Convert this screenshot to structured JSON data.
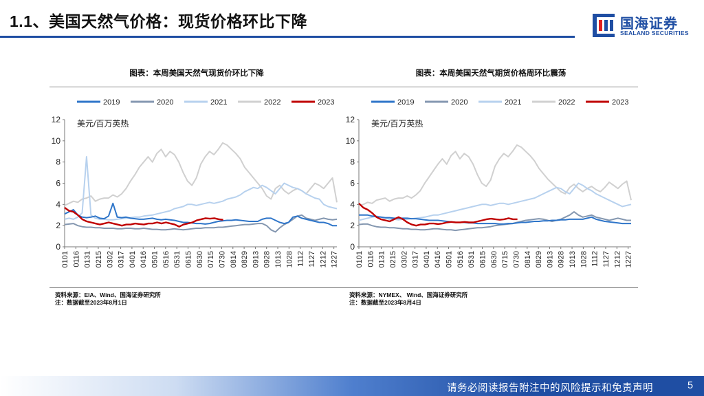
{
  "page": {
    "title": "1.1、美国天然气价格：现货价格环比下降",
    "logo_cn": "国海证券",
    "logo_en": "SEALAND SECURITIES",
    "footer_text": "请务必阅读报告附注中的风险提示和免责声明",
    "page_number": "5"
  },
  "colors": {
    "brand": "#1f4ea3",
    "2019": "#2e75c9",
    "2020": "#8497b0",
    "2021": "#b7d1ee",
    "2022": "#d0d0d0",
    "2023": "#c00000"
  },
  "left_panel": {
    "title": "图表：本周美国天然气现货价环比下降",
    "source_line1": "资料来源：EIA、Wind、国海证券研究所",
    "source_line2": "注：数据截至2023年8月1日"
  },
  "right_panel": {
    "title": "图表：本周美国天然气期货价格周环比震荡",
    "source_line1": "资料来源：NYMEX、 Wind、国海证券研究所",
    "source_line2": "注：数据截至2023年8月4日"
  },
  "chart_data": [
    {
      "type": "line",
      "title": "本周美国天然气现货价环比下降",
      "unit_label": "美元/百万英热",
      "ylim": [
        0,
        12
      ],
      "yticks": [
        0,
        2,
        4,
        6,
        8,
        10,
        12
      ],
      "x_tick_labels": [
        "0101",
        "0116",
        "0131",
        "0215",
        "0302",
        "0317",
        "0401",
        "0416",
        "0501",
        "0516",
        "0531",
        "0615",
        "0630",
        "0715",
        "0730",
        "0814",
        "0829",
        "0913",
        "0928",
        "1013",
        "1028",
        "1112",
        "1127",
        "1212",
        "1227"
      ],
      "legend": [
        "2019",
        "2020",
        "2021",
        "2022",
        "2023"
      ],
      "series": [
        {
          "name": "2019",
          "values": [
            3.1,
            3.3,
            3.5,
            3.0,
            2.8,
            2.75,
            2.8,
            2.9,
            2.7,
            2.65,
            2.9,
            4.1,
            2.8,
            2.75,
            2.8,
            2.7,
            2.65,
            2.6,
            2.6,
            2.65,
            2.7,
            2.6,
            2.55,
            2.6,
            2.55,
            2.5,
            2.4,
            2.3,
            2.3,
            2.25,
            2.2,
            2.2,
            2.15,
            2.2,
            2.3,
            2.4,
            2.45,
            2.5,
            2.5,
            2.55,
            2.5,
            2.45,
            2.4,
            2.4,
            2.4,
            2.6,
            2.7,
            2.7,
            2.5,
            2.3,
            2.2,
            2.3,
            2.8,
            2.9,
            2.7,
            2.6,
            2.5,
            2.4,
            2.3,
            2.3,
            2.2,
            2.0,
            2.0
          ]
        },
        {
          "name": "2020",
          "values": [
            2.1,
            2.15,
            2.2,
            2.0,
            1.9,
            1.85,
            1.85,
            1.8,
            1.8,
            1.75,
            1.75,
            1.75,
            1.7,
            1.7,
            1.75,
            1.75,
            1.7,
            1.7,
            1.75,
            1.7,
            1.65,
            1.65,
            1.6,
            1.6,
            1.65,
            1.7,
            1.65,
            1.6,
            1.65,
            1.7,
            1.75,
            1.75,
            1.8,
            1.8,
            1.8,
            1.85,
            1.85,
            1.9,
            1.95,
            2.0,
            2.05,
            2.1,
            2.1,
            2.15,
            2.2,
            2.2,
            2.0,
            1.6,
            1.4,
            1.8,
            2.1,
            2.3,
            2.6,
            2.9,
            3.0,
            2.7,
            2.6,
            2.5,
            2.6,
            2.7,
            2.6,
            2.55,
            2.6
          ]
        },
        {
          "name": "2021",
          "values": [
            2.6,
            2.7,
            2.6,
            2.8,
            3.2,
            8.5,
            3.0,
            2.7,
            2.6,
            2.6,
            2.55,
            2.55,
            2.6,
            2.65,
            2.7,
            2.75,
            2.8,
            2.8,
            2.9,
            2.95,
            3.0,
            3.1,
            3.2,
            3.3,
            3.4,
            3.6,
            3.7,
            3.8,
            4.0,
            4.0,
            3.9,
            4.0,
            4.1,
            4.2,
            4.1,
            4.2,
            4.3,
            4.5,
            4.6,
            4.7,
            4.9,
            5.2,
            5.4,
            5.6,
            5.5,
            5.8,
            5.6,
            5.3,
            5.0,
            5.5,
            6.0,
            5.8,
            5.6,
            5.5,
            5.3,
            5.0,
            4.8,
            4.6,
            4.5,
            4.0,
            3.8,
            3.7,
            3.6
          ]
        },
        {
          "name": "2022",
          "values": [
            3.9,
            4.1,
            4.3,
            4.2,
            4.5,
            4.6,
            4.8,
            4.3,
            4.5,
            4.6,
            4.6,
            4.9,
            4.7,
            5.0,
            5.5,
            6.2,
            6.8,
            7.5,
            8.0,
            8.5,
            8.0,
            8.8,
            9.2,
            8.5,
            9.0,
            8.7,
            8.0,
            7.0,
            6.2,
            5.8,
            6.5,
            7.8,
            8.5,
            9.0,
            8.7,
            9.2,
            9.8,
            9.6,
            9.2,
            8.8,
            8.3,
            7.5,
            7.0,
            6.5,
            6.0,
            5.5,
            4.8,
            4.5,
            5.5,
            5.8,
            5.3,
            5.0,
            5.3,
            5.5,
            5.3,
            5.0,
            5.5,
            6.0,
            5.8,
            5.5,
            6.0,
            6.5,
            4.2
          ]
        },
        {
          "name": "2023",
          "values": [
            3.7,
            3.4,
            3.3,
            3.0,
            2.6,
            2.4,
            2.3,
            2.2,
            2.1,
            2.2,
            2.3,
            2.2,
            2.1,
            2.0,
            2.1,
            2.1,
            2.2,
            2.15,
            2.1,
            2.2,
            2.2,
            2.3,
            2.2,
            2.3,
            2.2,
            2.1,
            1.9,
            2.1,
            2.2,
            2.3,
            2.5,
            2.6,
            2.7,
            2.65,
            2.7,
            2.6,
            2.55
          ]
        }
      ]
    },
    {
      "type": "line",
      "title": "本周美国天然气期货价格周环比震荡",
      "unit_label": "美元/百万英热",
      "ylim": [
        0,
        12
      ],
      "yticks": [
        0,
        2,
        4,
        6,
        8,
        10,
        12
      ],
      "x_tick_labels": [
        "0101",
        "0116",
        "0131",
        "0215",
        "0302",
        "0317",
        "0401",
        "0416",
        "0501",
        "0516",
        "0531",
        "0615",
        "0630",
        "0715",
        "0730",
        "0814",
        "0829",
        "0913",
        "0928",
        "1013",
        "1028",
        "1112",
        "1127",
        "1212",
        "1227"
      ],
      "legend": [
        "2019",
        "2020",
        "2021",
        "2022",
        "2023"
      ],
      "series": [
        {
          "name": "2019",
          "values": [
            3.0,
            3.0,
            3.0,
            2.9,
            2.85,
            2.8,
            2.75,
            2.75,
            2.7,
            2.7,
            2.7,
            2.7,
            2.65,
            2.65,
            2.6,
            2.55,
            2.5,
            2.5,
            2.5,
            2.45,
            2.4,
            2.35,
            2.3,
            2.3,
            2.3,
            2.25,
            2.25,
            2.2,
            2.2,
            2.2,
            2.2,
            2.2,
            2.15,
            2.15,
            2.2,
            2.2,
            2.25,
            2.3,
            2.3,
            2.35,
            2.4,
            2.4,
            2.45,
            2.45,
            2.5,
            2.5,
            2.55,
            2.55,
            2.6,
            2.6,
            2.6,
            2.6,
            2.7,
            2.8,
            2.6,
            2.5,
            2.4,
            2.35,
            2.3,
            2.25,
            2.2,
            2.2,
            2.2
          ]
        },
        {
          "name": "2020",
          "values": [
            2.1,
            2.15,
            2.15,
            2.0,
            1.9,
            1.85,
            1.85,
            1.8,
            1.8,
            1.75,
            1.7,
            1.7,
            1.65,
            1.65,
            1.6,
            1.6,
            1.65,
            1.7,
            1.7,
            1.65,
            1.6,
            1.6,
            1.55,
            1.6,
            1.65,
            1.7,
            1.75,
            1.8,
            1.8,
            1.85,
            1.9,
            2.0,
            2.05,
            2.1,
            2.15,
            2.2,
            2.3,
            2.4,
            2.5,
            2.55,
            2.6,
            2.65,
            2.6,
            2.5,
            2.4,
            2.5,
            2.6,
            2.8,
            3.0,
            3.3,
            3.0,
            2.8,
            2.9,
            3.0,
            2.8,
            2.7,
            2.6,
            2.5,
            2.6,
            2.7,
            2.6,
            2.5,
            2.5
          ]
        },
        {
          "name": "2021",
          "values": [
            2.5,
            2.6,
            2.7,
            2.8,
            2.9,
            2.8,
            2.7,
            2.6,
            2.6,
            2.55,
            2.6,
            2.6,
            2.65,
            2.7,
            2.75,
            2.8,
            2.9,
            3.0,
            3.0,
            3.1,
            3.2,
            3.3,
            3.4,
            3.5,
            3.6,
            3.7,
            3.8,
            3.9,
            4.0,
            4.0,
            3.9,
            4.0,
            4.1,
            4.1,
            4.0,
            4.1,
            4.2,
            4.3,
            4.4,
            4.5,
            4.6,
            4.8,
            5.0,
            5.2,
            5.4,
            5.6,
            5.5,
            5.2,
            5.0,
            5.5,
            6.0,
            5.8,
            5.5,
            5.3,
            5.0,
            4.8,
            4.6,
            4.4,
            4.2,
            4.0,
            3.8,
            3.9,
            4.0
          ]
        },
        {
          "name": "2022",
          "values": [
            3.9,
            4.0,
            4.2,
            4.1,
            4.4,
            4.5,
            4.6,
            4.3,
            4.5,
            4.6,
            4.6,
            4.8,
            4.6,
            4.9,
            5.3,
            6.0,
            6.6,
            7.2,
            7.8,
            8.3,
            7.8,
            8.6,
            9.0,
            8.3,
            8.8,
            8.5,
            7.8,
            6.8,
            6.0,
            5.7,
            6.3,
            7.6,
            8.3,
            8.8,
            8.5,
            9.0,
            9.6,
            9.4,
            9.0,
            8.6,
            8.1,
            7.4,
            6.9,
            6.4,
            6.0,
            5.6,
            5.2,
            5.0,
            5.6,
            5.9,
            5.5,
            5.2,
            5.5,
            5.7,
            5.4,
            5.2,
            5.6,
            6.1,
            5.8,
            5.5,
            5.9,
            6.2,
            4.4
          ]
        },
        {
          "name": "2023",
          "values": [
            4.1,
            3.7,
            3.5,
            3.2,
            2.8,
            2.6,
            2.5,
            2.4,
            2.6,
            2.8,
            2.6,
            2.3,
            2.1,
            2.0,
            2.1,
            2.1,
            2.2,
            2.2,
            2.15,
            2.2,
            2.3,
            2.35,
            2.3,
            2.3,
            2.35,
            2.3,
            2.3,
            2.4,
            2.5,
            2.6,
            2.65,
            2.6,
            2.55,
            2.6,
            2.7,
            2.6,
            2.6
          ]
        }
      ]
    }
  ]
}
